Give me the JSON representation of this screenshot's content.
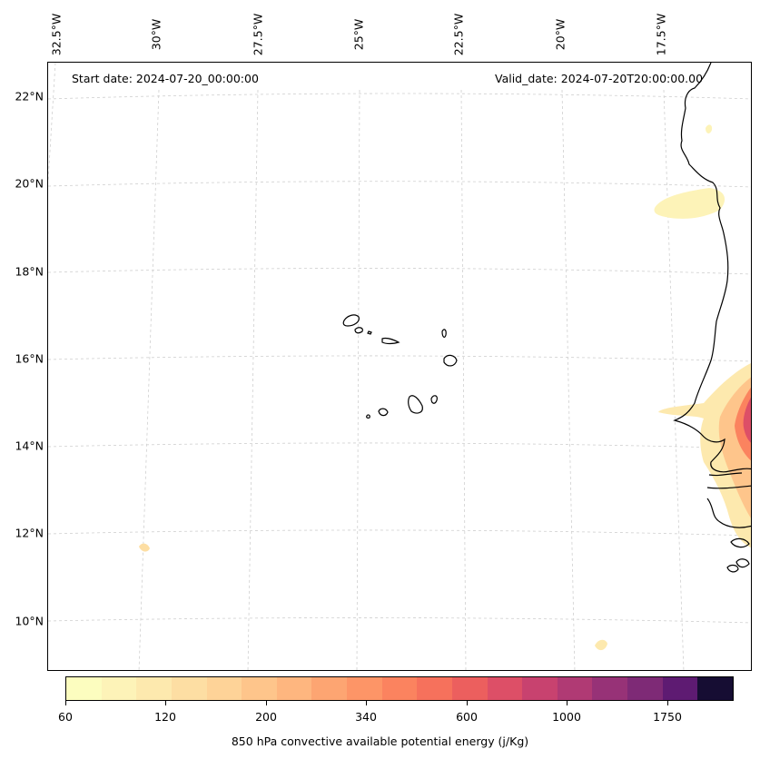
{
  "header": {
    "start_date": "Start date: 2024-07-20_00:00:00",
    "valid_date": "Valid_date: 2024-07-20T20:00:00.00"
  },
  "axes": {
    "longitude_labels": [
      "32.5°W",
      "30°W",
      "27.5°W",
      "25°W",
      "22.5°W",
      "20°W",
      "17.5°W"
    ],
    "latitude_labels": [
      "22°N",
      "20°N",
      "18°N",
      "16°N",
      "14°N",
      "12°N",
      "10°N"
    ],
    "gridlines": true
  },
  "colorbar": {
    "title": "850 hPa convective available potential energy (j/Kg)",
    "tick_labels": [
      "60",
      "120",
      "200",
      "340",
      "600",
      "1000",
      "1750"
    ],
    "colors": [
      "#fcfdbf",
      "#fdf3b8",
      "#fde9ae",
      "#fddea3",
      "#fed398",
      "#fec58b",
      "#feb67f",
      "#fda572",
      "#fd9567",
      "#fb835f",
      "#f6715c",
      "#ec5f5e",
      "#dd4f67",
      "#c8426f",
      "#b03a74",
      "#973277",
      "#7e2a76",
      "#5e1b72",
      "#160d33"
    ]
  },
  "map": {
    "features": [
      "Cape Verde islands",
      "West African coastline",
      "CAPE contour fill"
    ]
  }
}
